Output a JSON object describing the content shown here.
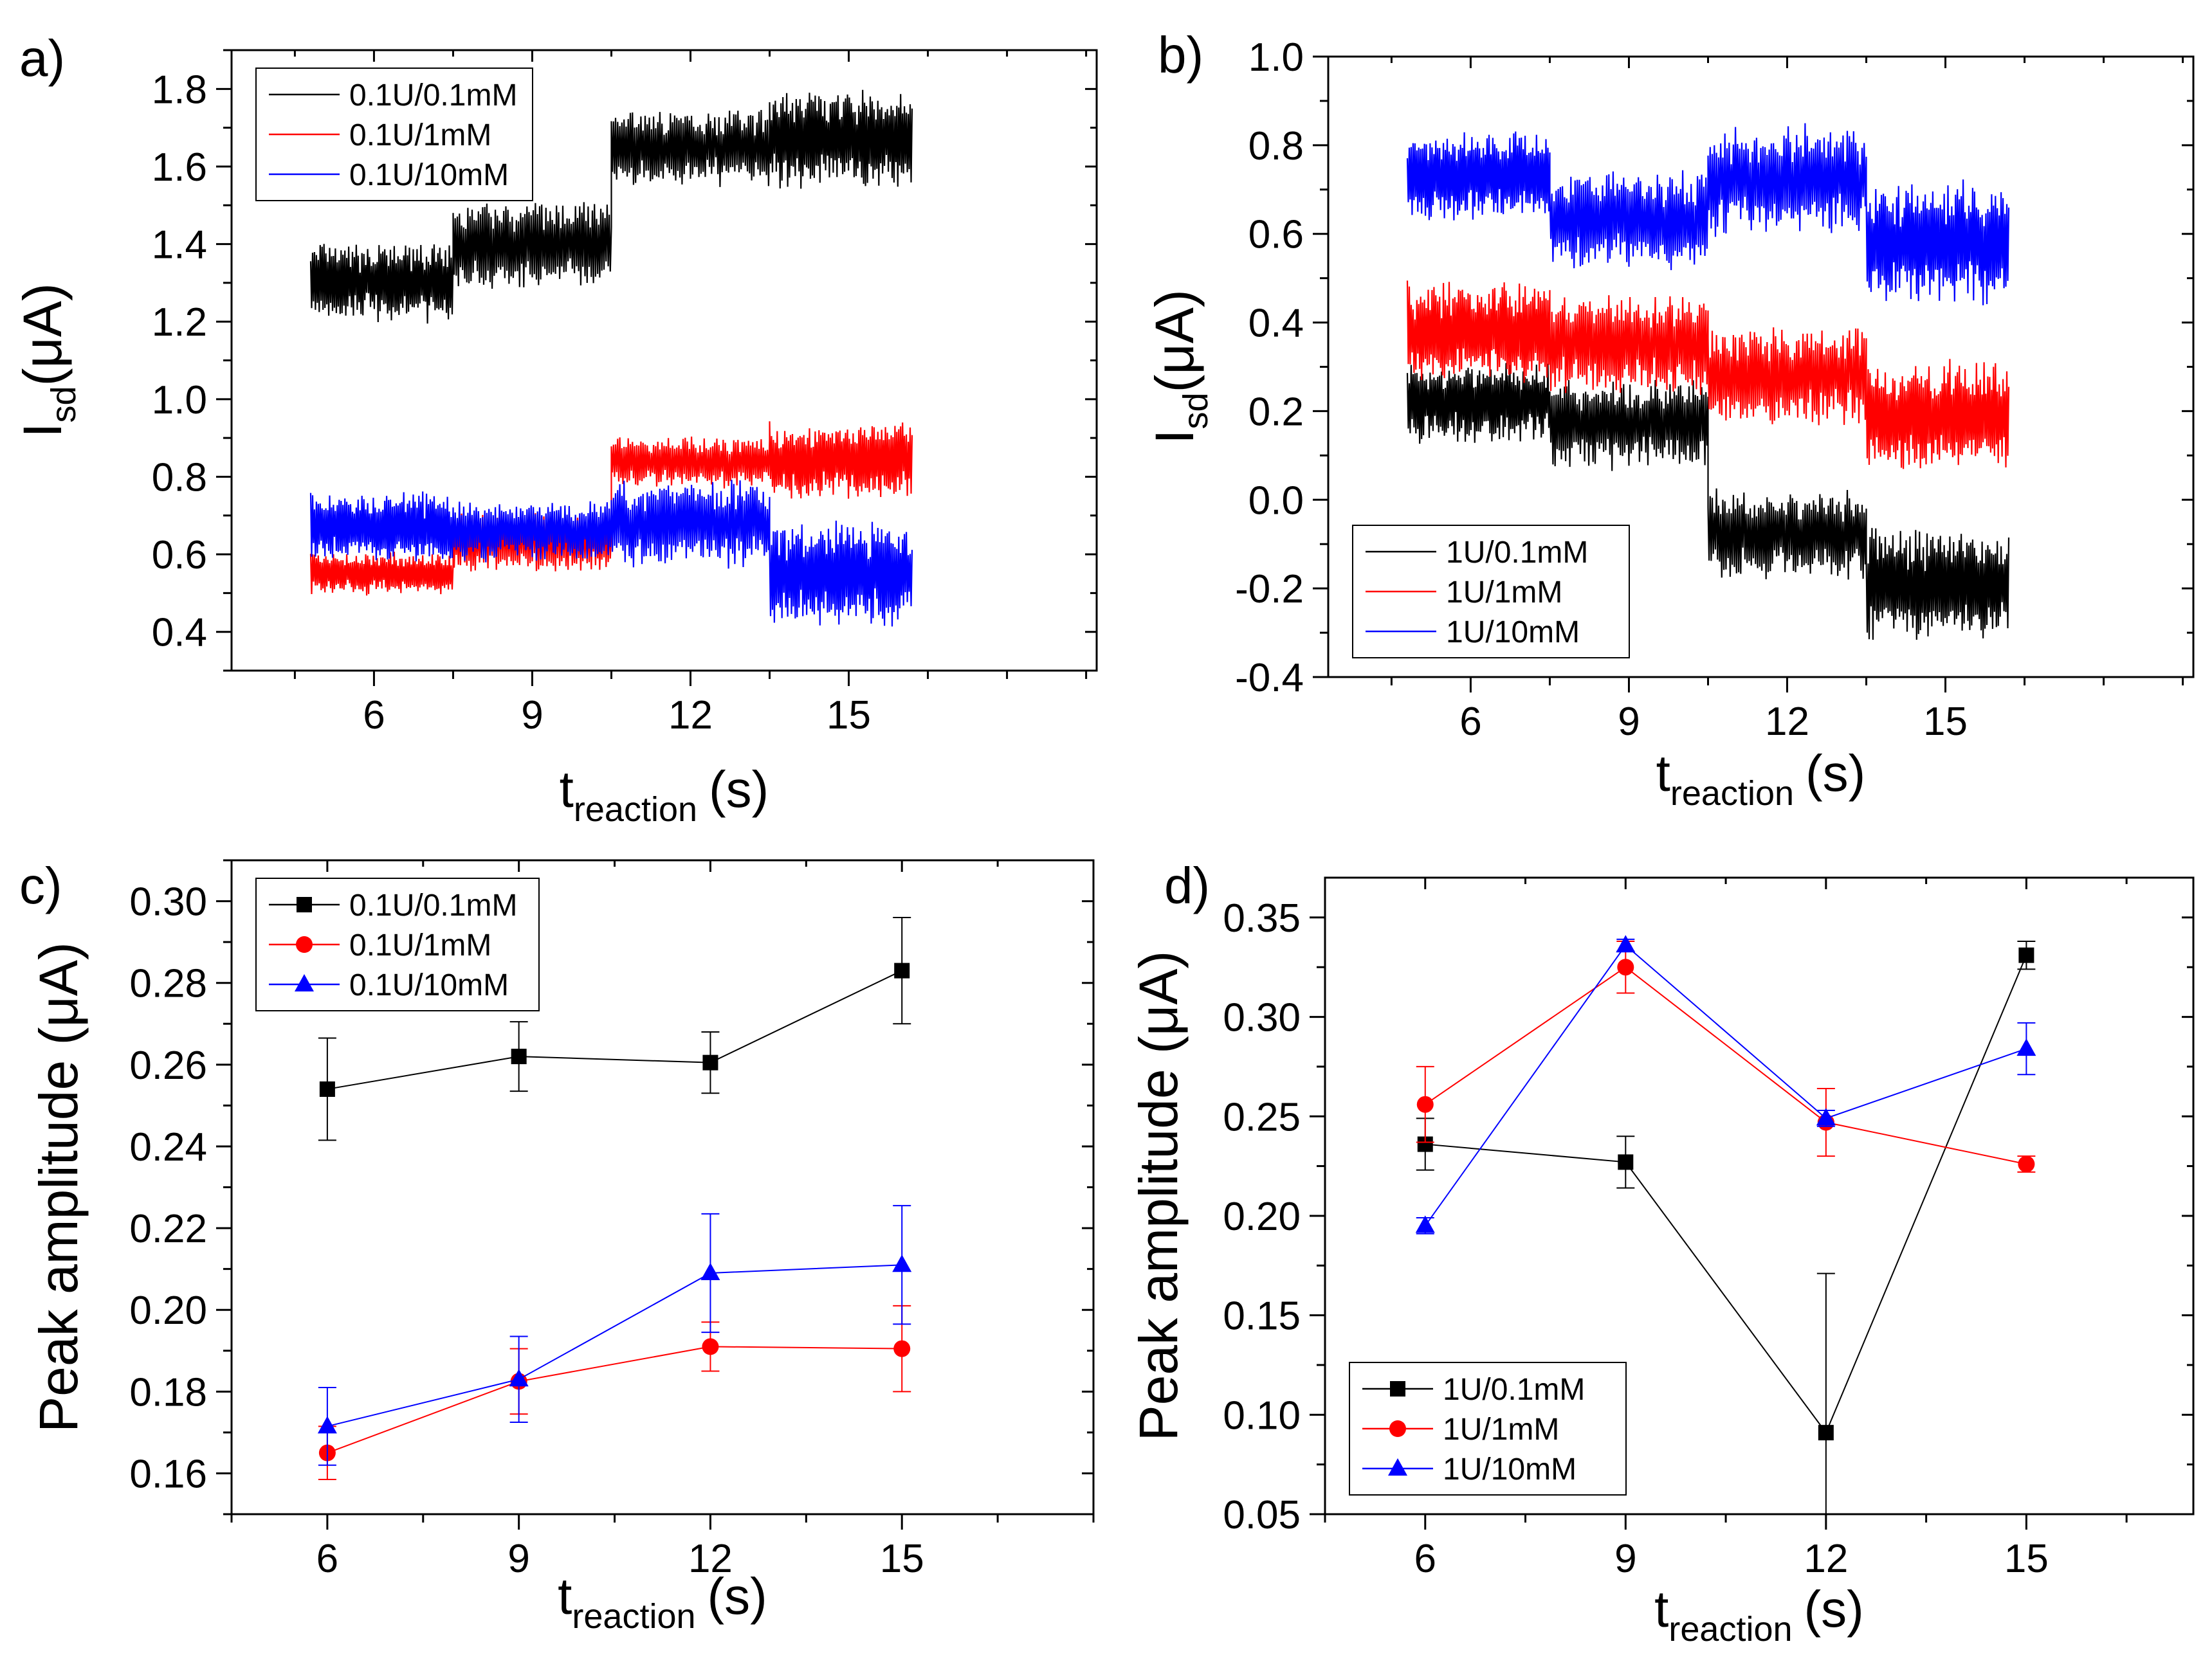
{
  "chart_data": [
    {
      "panel": "a)",
      "type": "line",
      "title": "",
      "xlabel": "t",
      "xlabel_sub": "reaction",
      "xlabel_unit": "(s)",
      "ylabel": "I",
      "ylabel_sub": "sd",
      "ylabel_unit": "(μA)",
      "xlim": [
        3.3,
        19.7
      ],
      "ylim": [
        0.3,
        1.9
      ],
      "xticks": [
        6,
        9,
        12,
        15
      ],
      "yticks": [
        0.4,
        0.6,
        0.8,
        1.0,
        1.2,
        1.4,
        1.6,
        1.8
      ],
      "tick_decimals": 1,
      "legend_position": "top-left",
      "series": [
        {
          "name": "0.1U/0.1mM",
          "color": "#000000",
          "segments": [
            {
              "x0": 4.8,
              "x1": 7.5,
              "center": 1.3,
              "amp": 0.09
            },
            {
              "x0": 7.5,
              "x1": 10.5,
              "center": 1.4,
              "amp": 0.1
            },
            {
              "x0": 10.5,
              "x1": 13.5,
              "center": 1.65,
              "amp": 0.09
            },
            {
              "x0": 13.5,
              "x1": 16.2,
              "center": 1.67,
              "amp": 0.11
            }
          ]
        },
        {
          "name": "0.1U/1mM",
          "color": "#ff0000",
          "segments": [
            {
              "x0": 4.8,
              "x1": 7.5,
              "center": 0.55,
              "amp": 0.05
            },
            {
              "x0": 7.5,
              "x1": 10.5,
              "center": 0.63,
              "amp": 0.07
            },
            {
              "x0": 10.5,
              "x1": 13.5,
              "center": 0.84,
              "amp": 0.06
            },
            {
              "x0": 13.5,
              "x1": 16.2,
              "center": 0.84,
              "amp": 0.09
            }
          ]
        },
        {
          "name": "0.1U/10mM",
          "color": "#0000ff",
          "segments": [
            {
              "x0": 4.8,
              "x1": 7.5,
              "center": 0.67,
              "amp": 0.08
            },
            {
              "x0": 7.5,
              "x1": 10.5,
              "center": 0.66,
              "amp": 0.07
            },
            {
              "x0": 10.5,
              "x1": 13.5,
              "center": 0.68,
              "amp": 0.1
            },
            {
              "x0": 13.5,
              "x1": 16.2,
              "center": 0.55,
              "amp": 0.12
            }
          ]
        }
      ]
    },
    {
      "panel": "b)",
      "type": "line",
      "title": "",
      "xlabel": "t",
      "xlabel_sub": "reaction",
      "xlabel_unit": "(s)",
      "ylabel": "I",
      "ylabel_sub": "sd",
      "ylabel_unit": "(μA)",
      "xlim": [
        3.3,
        19.7
      ],
      "ylim": [
        -0.4,
        1.0
      ],
      "xticks": [
        6,
        9,
        12,
        15
      ],
      "yticks": [
        -0.4,
        -0.2,
        0.0,
        0.2,
        0.4,
        0.6,
        0.8,
        1.0
      ],
      "tick_decimals": 1,
      "legend_position": "bottom-left",
      "series": [
        {
          "name": "1U/0.1mM",
          "color": "#000000",
          "segments": [
            {
              "x0": 4.8,
              "x1": 7.5,
              "center": 0.22,
              "amp": 0.08
            },
            {
              "x0": 7.5,
              "x1": 10.5,
              "center": 0.17,
              "amp": 0.09
            },
            {
              "x0": 10.5,
              "x1": 13.5,
              "center": -0.08,
              "amp": 0.09
            },
            {
              "x0": 13.5,
              "x1": 16.2,
              "center": -0.19,
              "amp": 0.11
            }
          ]
        },
        {
          "name": "1U/1mM",
          "color": "#ff0000",
          "segments": [
            {
              "x0": 4.8,
              "x1": 7.5,
              "center": 0.38,
              "amp": 0.1
            },
            {
              "x0": 7.5,
              "x1": 10.5,
              "center": 0.35,
              "amp": 0.1
            },
            {
              "x0": 10.5,
              "x1": 13.5,
              "center": 0.28,
              "amp": 0.1
            },
            {
              "x0": 13.5,
              "x1": 16.2,
              "center": 0.19,
              "amp": 0.11
            }
          ]
        },
        {
          "name": "1U/10mM",
          "color": "#0000ff",
          "segments": [
            {
              "x0": 4.8,
              "x1": 7.5,
              "center": 0.73,
              "amp": 0.09
            },
            {
              "x0": 7.5,
              "x1": 10.5,
              "center": 0.63,
              "amp": 0.1
            },
            {
              "x0": 10.5,
              "x1": 13.5,
              "center": 0.72,
              "amp": 0.11
            },
            {
              "x0": 13.5,
              "x1": 16.2,
              "center": 0.58,
              "amp": 0.12
            }
          ]
        }
      ]
    },
    {
      "panel": "c)",
      "type": "scatter",
      "title": "",
      "xlabel": "t",
      "xlabel_sub": "reaction",
      "xlabel_unit": "(s)",
      "ylabel": "Peak amplitude (μA)",
      "xlim": [
        4.5,
        18.0
      ],
      "ylim": [
        0.15,
        0.31
      ],
      "xticks": [
        6,
        9,
        12,
        15
      ],
      "yticks": [
        0.16,
        0.18,
        0.2,
        0.22,
        0.24,
        0.26,
        0.28,
        0.3
      ],
      "tick_decimals": 2,
      "legend_position": "top-left",
      "x": [
        6,
        9,
        12,
        15
      ],
      "series": [
        {
          "name": "0.1U/0.1mM",
          "color": "#000000",
          "marker": "square",
          "values": [
            0.254,
            0.262,
            0.2605,
            0.283
          ],
          "errors": [
            0.0125,
            0.0085,
            0.0075,
            0.013
          ]
        },
        {
          "name": "0.1U/1mM",
          "color": "#ff0000",
          "marker": "circle",
          "values": [
            0.165,
            0.1825,
            0.191,
            0.1905
          ],
          "errors": [
            0.0065,
            0.008,
            0.006,
            0.0105
          ]
        },
        {
          "name": "0.1U/10mM",
          "color": "#0000ff",
          "marker": "triangle",
          "values": [
            0.1715,
            0.183,
            0.209,
            0.211
          ],
          "errors": [
            0.0095,
            0.0105,
            0.0145,
            0.0145
          ]
        }
      ]
    },
    {
      "panel": "d)",
      "type": "scatter",
      "title": "",
      "xlabel": "t",
      "xlabel_sub": "reaction",
      "xlabel_unit": "(s)",
      "ylabel": "Peak amplitude (μA)",
      "xlim": [
        4.5,
        17.5
      ],
      "ylim": [
        0.05,
        0.37
      ],
      "xticks": [
        6,
        9,
        12,
        15
      ],
      "yticks": [
        0.05,
        0.1,
        0.15,
        0.2,
        0.25,
        0.3,
        0.35
      ],
      "tick_decimals": 2,
      "legend_position": "bottom-left",
      "x": [
        6,
        9,
        12,
        15
      ],
      "series": [
        {
          "name": "1U/0.1mM",
          "color": "#000000",
          "marker": "square",
          "values": [
            0.236,
            0.227,
            0.091,
            0.331
          ],
          "errors": [
            0.013,
            0.013,
            0.08,
            0.007
          ]
        },
        {
          "name": "1U/1mM",
          "color": "#ff0000",
          "marker": "circle",
          "values": [
            0.256,
            0.325,
            0.247,
            0.226
          ],
          "errors": [
            0.019,
            0.013,
            0.017,
            0.004
          ]
        },
        {
          "name": "1U/10mM",
          "color": "#0000ff",
          "marker": "triangle",
          "values": [
            0.195,
            0.336,
            0.249,
            0.284
          ],
          "errors": [
            0.004,
            0.003,
            0.004,
            0.013
          ]
        }
      ]
    }
  ]
}
